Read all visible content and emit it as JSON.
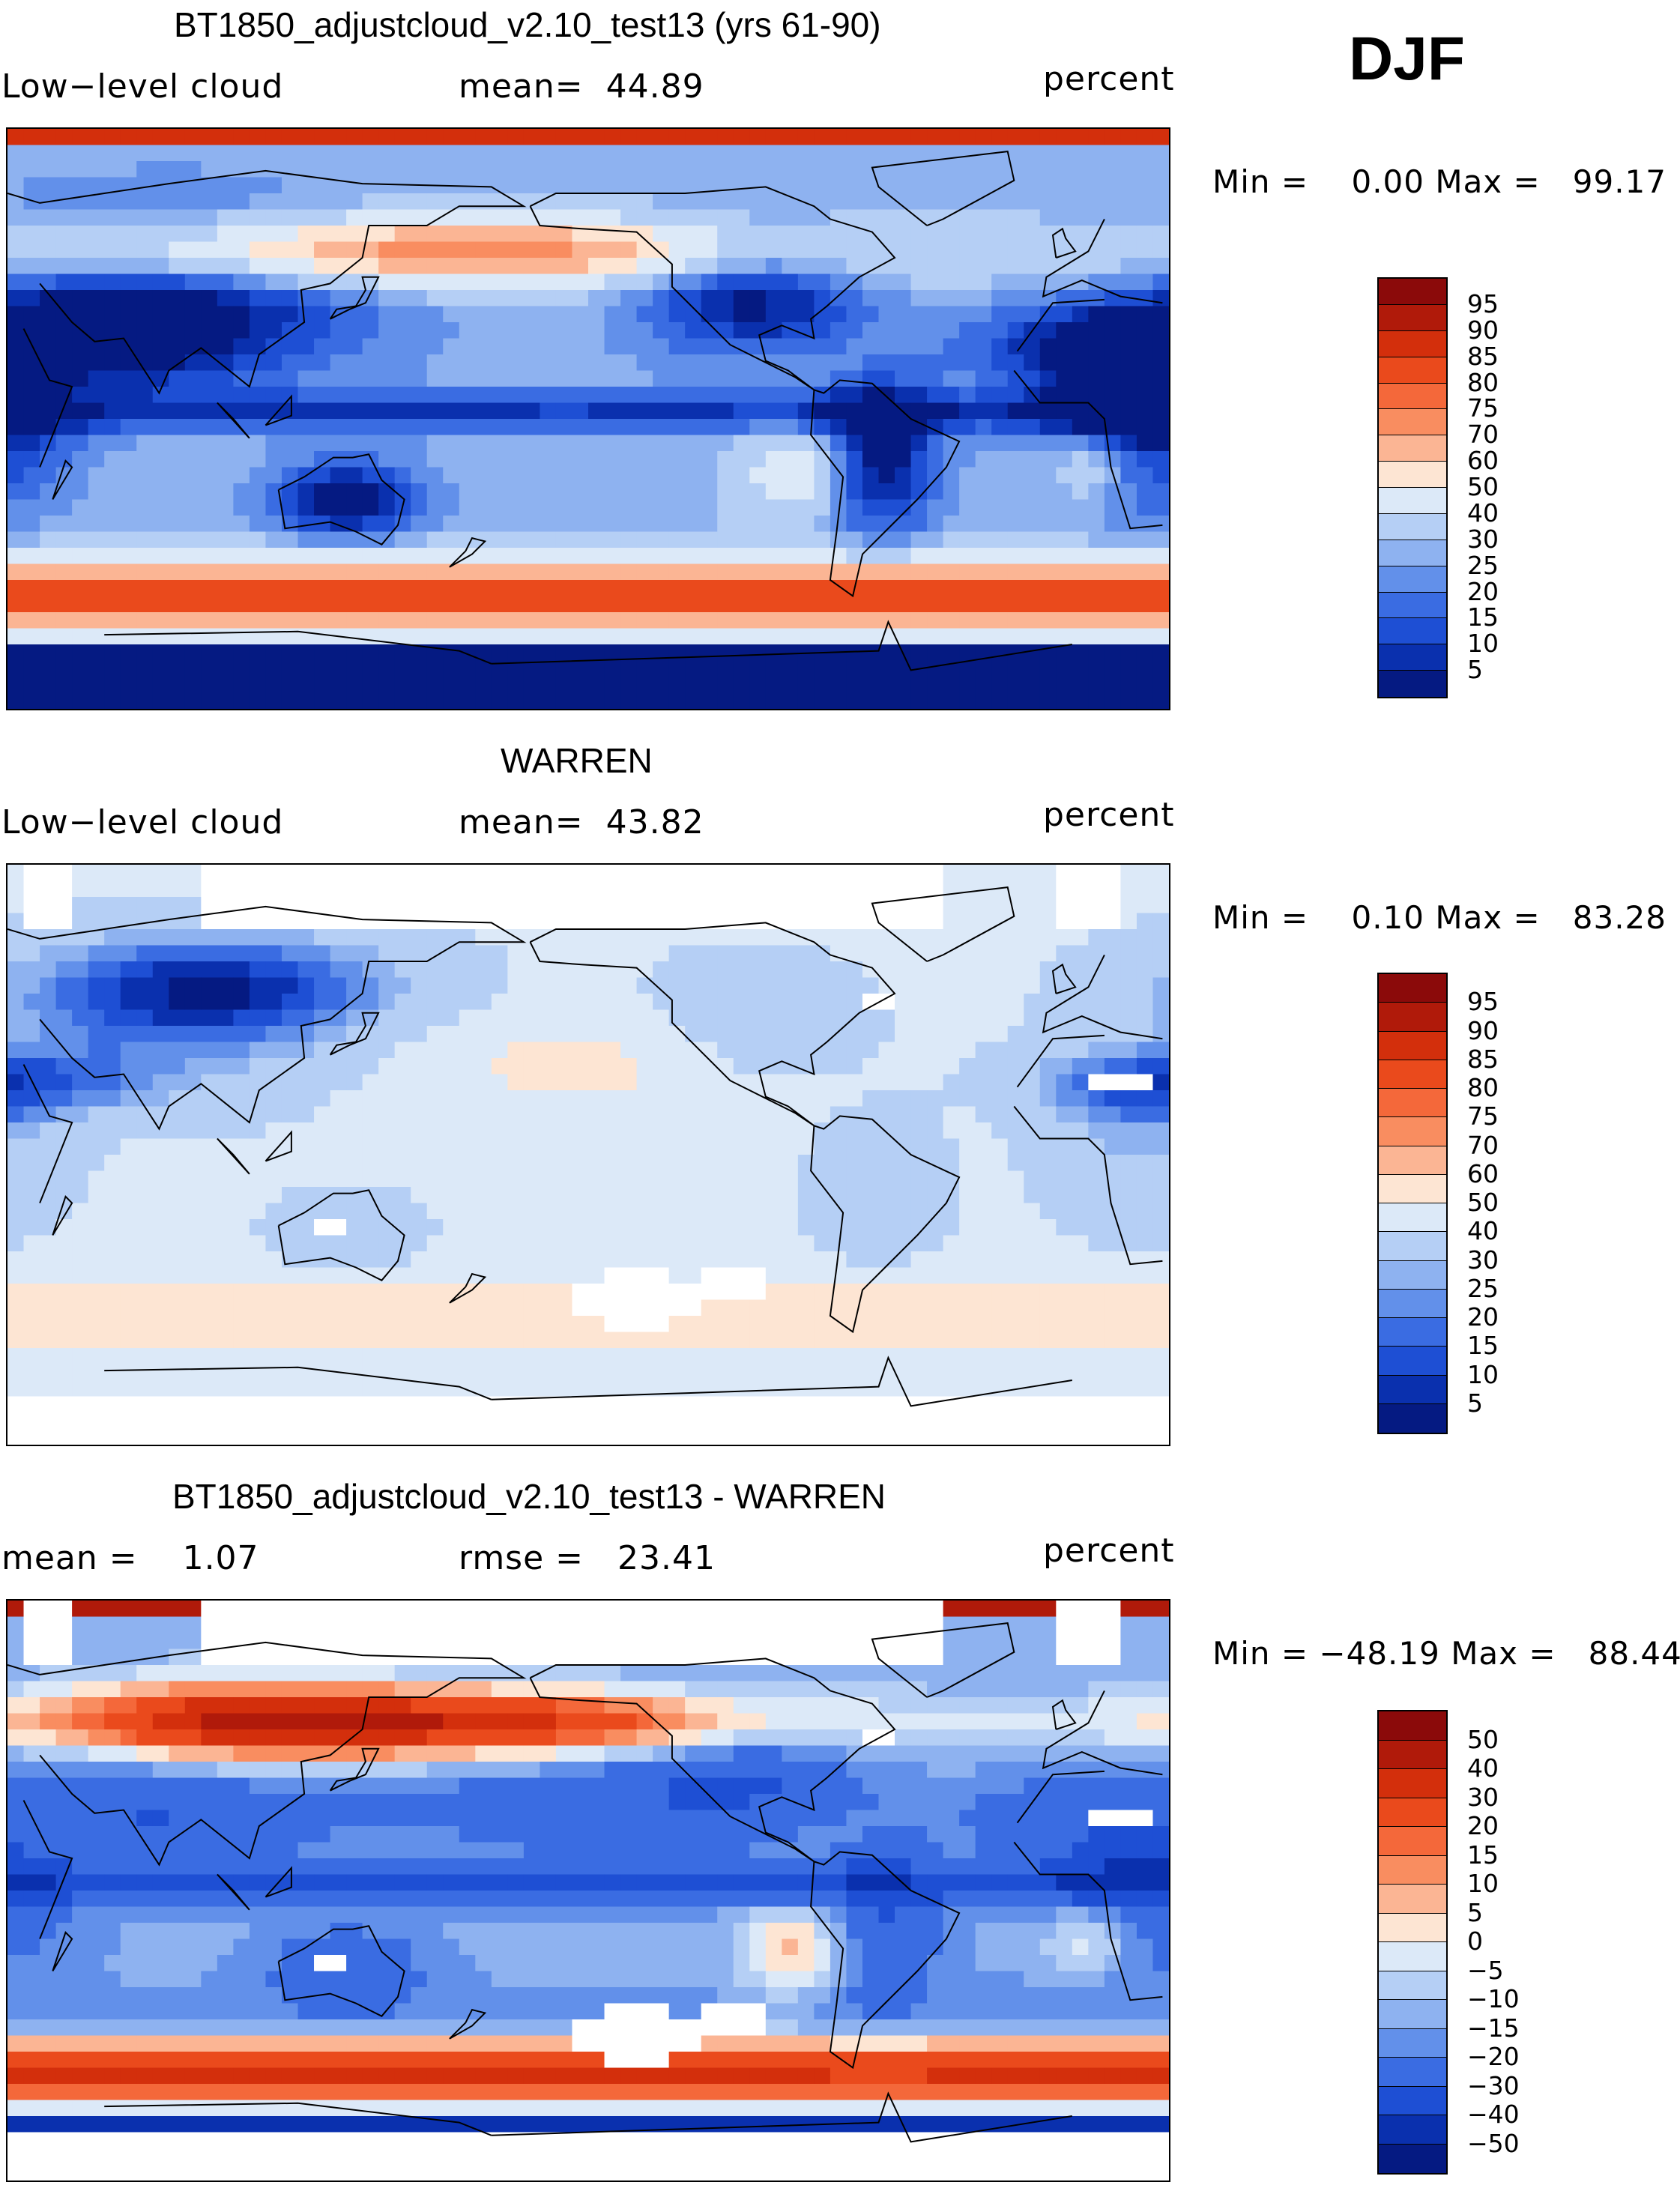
{
  "season": "DJF",
  "panels": [
    {
      "title": "BT1850_adjustcloud_v2.10_test13 (yrs 61-90)",
      "left_label": "Low−level cloud",
      "center_label": "mean=  44.89",
      "right_label": "percent",
      "minmax": "Min =    0.00 Max =   99.17",
      "field": "model",
      "colorbar": {
        "labels": [
          "95",
          "90",
          "85",
          "80",
          "75",
          "70",
          "60",
          "50",
          "40",
          "30",
          "25",
          "20",
          "15",
          "10",
          "5"
        ],
        "colors": [
          "#8b0a0a",
          "#b01a0a",
          "#d32f0c",
          "#ea4a1c",
          "#f4683a",
          "#f98d60",
          "#fbb594",
          "#fde5d3",
          "#dce9f8",
          "#b5cff5",
          "#8eb2f0",
          "#6290ea",
          "#3a6ce2",
          "#1e4fd4",
          "#0a30ae",
          "#051a82"
        ]
      }
    },
    {
      "title": "WARREN",
      "left_label": "Low−level cloud",
      "center_label": "mean=  43.82",
      "right_label": "percent",
      "minmax": "Min =    0.10 Max =   83.28",
      "field": "obs",
      "colorbar": {
        "labels": [
          "95",
          "90",
          "85",
          "80",
          "75",
          "70",
          "60",
          "50",
          "40",
          "30",
          "25",
          "20",
          "15",
          "10",
          "5"
        ],
        "colors": [
          "#8b0a0a",
          "#b01a0a",
          "#d32f0c",
          "#ea4a1c",
          "#f4683a",
          "#f98d60",
          "#fbb594",
          "#fde5d3",
          "#dce9f8",
          "#b5cff5",
          "#8eb2f0",
          "#6290ea",
          "#3a6ce2",
          "#1e4fd4",
          "#0a30ae",
          "#051a82"
        ]
      }
    },
    {
      "title": "BT1850_adjustcloud_v2.10_test13 - WARREN",
      "left_label": "mean =    1.07",
      "center_label": "rmse =   23.41",
      "right_label": "percent",
      "minmax": "Min = −48.19 Max =   88.44",
      "field": "diff",
      "colorbar": {
        "labels": [
          "50",
          "40",
          "30",
          "20",
          "15",
          "10",
          "5",
          "0",
          "−5",
          "−10",
          "−15",
          "−20",
          "−30",
          "−40",
          "−50"
        ],
        "colors": [
          "#8b0a0a",
          "#b01a0a",
          "#d32f0c",
          "#ea4a1c",
          "#f4683a",
          "#f98d60",
          "#fbb594",
          "#fde5d3",
          "#dce9f8",
          "#b5cff5",
          "#8eb2f0",
          "#6290ea",
          "#3a6ce2",
          "#1e4fd4",
          "#0a30ae",
          "#051a82"
        ]
      }
    }
  ]
}
